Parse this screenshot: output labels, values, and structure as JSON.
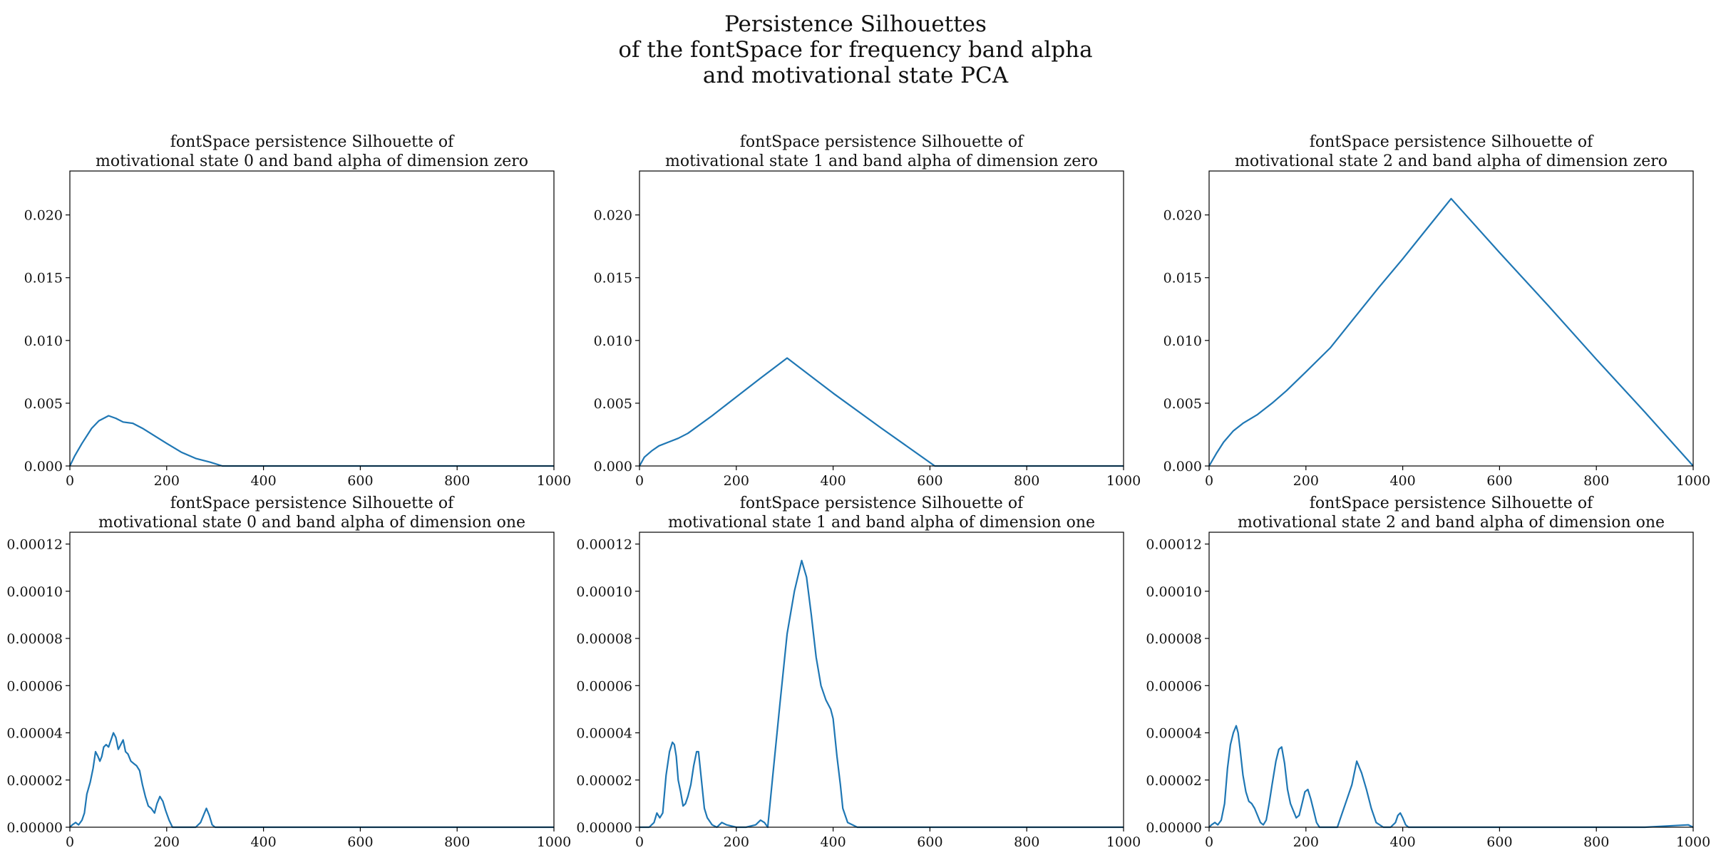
{
  "figure": {
    "suptitle": [
      "Persistence Silhouettes",
      "of the fontSpace for frequency band alpha",
      "and motivational state PCA"
    ],
    "line_color": "#1f77b4"
  },
  "chart_data": [
    {
      "type": "line",
      "title": [
        "fontSpace persistence Silhouette of",
        "motivational state 0 and band alpha of dimension zero"
      ],
      "xlim": [
        0,
        1000
      ],
      "ylim": [
        0,
        0.0235
      ],
      "xticks": [
        0,
        200,
        400,
        600,
        800,
        1000
      ],
      "xtick_labels": [
        "0",
        "200",
        "400",
        "600",
        "800",
        "1000"
      ],
      "yticks": [
        0,
        0.005,
        0.01,
        0.015,
        0.02
      ],
      "ytick_labels": [
        "0.000",
        "0.005",
        "0.010",
        "0.015",
        "0.020"
      ],
      "series": [
        {
          "x": [
            0,
            10,
            25,
            45,
            60,
            80,
            95,
            110,
            130,
            150,
            175,
            200,
            230,
            260,
            290,
            315,
            340,
            400,
            600,
            800,
            1000
          ],
          "y": [
            0,
            0.0008,
            0.0018,
            0.003,
            0.0036,
            0.004,
            0.0038,
            0.0035,
            0.0034,
            0.003,
            0.0024,
            0.0018,
            0.0011,
            0.0006,
            0.0003,
            0,
            0,
            0,
            0,
            0,
            0
          ]
        }
      ]
    },
    {
      "type": "line",
      "title": [
        "fontSpace persistence Silhouette of",
        "motivational state 1 and band alpha of dimension zero"
      ],
      "xlim": [
        0,
        1000
      ],
      "ylim": [
        0,
        0.0235
      ],
      "xticks": [
        0,
        200,
        400,
        600,
        800,
        1000
      ],
      "xtick_labels": [
        "0",
        "200",
        "400",
        "600",
        "800",
        "1000"
      ],
      "yticks": [
        0,
        0.005,
        0.01,
        0.015,
        0.02
      ],
      "ytick_labels": [
        "0.000",
        "0.005",
        "0.010",
        "0.015",
        "0.020"
      ],
      "series": [
        {
          "x": [
            0,
            10,
            25,
            40,
            60,
            80,
            100,
            150,
            200,
            250,
            305,
            400,
            500,
            610,
            700,
            800,
            900,
            1000
          ],
          "y": [
            0,
            0.0007,
            0.0012,
            0.0016,
            0.0019,
            0.0022,
            0.0026,
            0.004,
            0.0055,
            0.007,
            0.0086,
            0.0058,
            0.003,
            0,
            0,
            0,
            0,
            0
          ]
        }
      ]
    },
    {
      "type": "line",
      "title": [
        "fontSpace persistence Silhouette of",
        "motivational state 2 and band alpha of dimension zero"
      ],
      "xlim": [
        0,
        1000
      ],
      "ylim": [
        0,
        0.0235
      ],
      "xticks": [
        0,
        200,
        400,
        600,
        800,
        1000
      ],
      "xtick_labels": [
        "0",
        "200",
        "400",
        "600",
        "800",
        "1000"
      ],
      "yticks": [
        0,
        0.005,
        0.01,
        0.015,
        0.02
      ],
      "ytick_labels": [
        "0.000",
        "0.005",
        "0.010",
        "0.015",
        "0.020"
      ],
      "series": [
        {
          "x": [
            0,
            15,
            30,
            50,
            70,
            100,
            130,
            160,
            200,
            250,
            300,
            350,
            400,
            450,
            500,
            600,
            700,
            800,
            900,
            1000
          ],
          "y": [
            0,
            0.001,
            0.0019,
            0.0028,
            0.0034,
            0.0041,
            0.005,
            0.006,
            0.0075,
            0.0094,
            0.0118,
            0.0142,
            0.0165,
            0.0189,
            0.0213,
            0.017,
            0.0128,
            0.0085,
            0.0043,
            0
          ]
        }
      ]
    },
    {
      "type": "line",
      "title": [
        "fontSpace persistence Silhouette of",
        "motivational state 0 and band alpha of dimension one"
      ],
      "xlim": [
        0,
        1000
      ],
      "ylim": [
        0,
        0.000125
      ],
      "xticks": [
        0,
        200,
        400,
        600,
        800,
        1000
      ],
      "xtick_labels": [
        "0",
        "200",
        "400",
        "600",
        "800",
        "1000"
      ],
      "yticks": [
        0,
        2e-05,
        4e-05,
        6e-05,
        8e-05,
        0.0001,
        0.00012
      ],
      "ytick_labels": [
        "0.00000",
        "0.00002",
        "0.00004",
        "0.00006",
        "0.00008",
        "0.00010",
        "0.00012"
      ],
      "series": [
        {
          "x": [
            0,
            5,
            12,
            18,
            25,
            30,
            35,
            42,
            48,
            53,
            58,
            62,
            66,
            70,
            75,
            80,
            85,
            90,
            95,
            100,
            105,
            110,
            115,
            120,
            126,
            132,
            138,
            144,
            150,
            156,
            162,
            168,
            175,
            180,
            186,
            192,
            198,
            205,
            212,
            218,
            225,
            240,
            260,
            270,
            276,
            282,
            288,
            294,
            300,
            310,
            400,
            600,
            800,
            1000
          ],
          "y": [
            0,
            1e-06,
            2e-06,
            1e-06,
            3e-06,
            6e-06,
            1.4e-05,
            1.9e-05,
            2.5e-05,
            3.2e-05,
            3e-05,
            2.8e-05,
            3e-05,
            3.4e-05,
            3.5e-05,
            3.4e-05,
            3.7e-05,
            4e-05,
            3.8e-05,
            3.3e-05,
            3.5e-05,
            3.7e-05,
            3.2e-05,
            3.1e-05,
            2.8e-05,
            2.7e-05,
            2.6e-05,
            2.4e-05,
            1.8e-05,
            1.3e-05,
            9e-06,
            8e-06,
            6e-06,
            1e-05,
            1.3e-05,
            1.1e-05,
            7e-06,
            3e-06,
            0,
            0,
            0,
            0,
            0,
            2e-06,
            5e-06,
            8e-06,
            5e-06,
            1e-06,
            0,
            0,
            0,
            0,
            0,
            0
          ]
        }
      ]
    },
    {
      "type": "line",
      "title": [
        "fontSpace persistence Silhouette of",
        "motivational state 1 and band alpha of dimension one"
      ],
      "xlim": [
        0,
        1000
      ],
      "ylim": [
        0,
        0.000125
      ],
      "xticks": [
        0,
        200,
        400,
        600,
        800,
        1000
      ],
      "xtick_labels": [
        "0",
        "200",
        "400",
        "600",
        "800",
        "1000"
      ],
      "yticks": [
        0,
        2e-05,
        4e-05,
        6e-05,
        8e-05,
        0.0001,
        0.00012
      ],
      "ytick_labels": [
        "0.00000",
        "0.00002",
        "0.00004",
        "0.00006",
        "0.00008",
        "0.00010",
        "0.00012"
      ],
      "series": [
        {
          "x": [
            0,
            20,
            30,
            36,
            42,
            48,
            55,
            62,
            68,
            72,
            76,
            80,
            85,
            90,
            95,
            100,
            106,
            112,
            118,
            122,
            128,
            134,
            140,
            150,
            160,
            165,
            170,
            180,
            200,
            220,
            240,
            250,
            258,
            265,
            275,
            290,
            305,
            320,
            335,
            345,
            355,
            365,
            375,
            385,
            395,
            400,
            408,
            415,
            420,
            430,
            450,
            600,
            800,
            1000
          ],
          "y": [
            0,
            0,
            2e-06,
            6e-06,
            4e-06,
            6e-06,
            2.2e-05,
            3.2e-05,
            3.6e-05,
            3.5e-05,
            3e-05,
            2e-05,
            1.5e-05,
            9e-06,
            1e-05,
            1.3e-05,
            1.8e-05,
            2.6e-05,
            3.2e-05,
            3.2e-05,
            2e-05,
            8e-06,
            4e-06,
            1e-06,
            0,
            1e-06,
            2e-06,
            1e-06,
            0,
            0,
            1e-06,
            3e-06,
            2e-06,
            0,
            2.1e-05,
            5.2e-05,
            8.2e-05,
            0.0001,
            0.000113,
            0.000106,
            9e-05,
            7.2e-05,
            6e-05,
            5.4e-05,
            5e-05,
            4.6e-05,
            3e-05,
            1.8e-05,
            8e-06,
            2e-06,
            0,
            0,
            0,
            0
          ]
        }
      ]
    },
    {
      "type": "line",
      "title": [
        "fontSpace persistence Silhouette of",
        "motivational state 2 and band alpha of dimension one"
      ],
      "xlim": [
        0,
        1000
      ],
      "ylim": [
        0,
        0.000125
      ],
      "xticks": [
        0,
        200,
        400,
        600,
        800,
        1000
      ],
      "xtick_labels": [
        "0",
        "200",
        "400",
        "600",
        "800",
        "1000"
      ],
      "yticks": [
        0,
        2e-05,
        4e-05,
        6e-05,
        8e-05,
        0.0001,
        0.00012
      ],
      "ytick_labels": [
        "0.00000",
        "0.00002",
        "0.00004",
        "0.00006",
        "0.00008",
        "0.00010",
        "0.00012"
      ],
      "series": [
        {
          "x": [
            0,
            5,
            12,
            18,
            25,
            32,
            38,
            44,
            50,
            56,
            60,
            64,
            70,
            76,
            82,
            88,
            94,
            100,
            106,
            112,
            118,
            124,
            130,
            138,
            144,
            150,
            156,
            162,
            168,
            174,
            180,
            186,
            192,
            198,
            204,
            210,
            216,
            222,
            228,
            235,
            245,
            255,
            265,
            275,
            285,
            295,
            305,
            315,
            325,
            335,
            345,
            360,
            375,
            385,
            390,
            395,
            400,
            406,
            412,
            420,
            500,
            700,
            900,
            990,
            1000
          ],
          "y": [
            0,
            1e-06,
            2e-06,
            1e-06,
            3e-06,
            1e-05,
            2.5e-05,
            3.5e-05,
            4e-05,
            4.3e-05,
            4e-05,
            3.3e-05,
            2.2e-05,
            1.5e-05,
            1.1e-05,
            1e-05,
            8e-06,
            5e-06,
            2e-06,
            1e-06,
            3e-06,
            1e-05,
            1.8e-05,
            2.8e-05,
            3.3e-05,
            3.4e-05,
            2.7e-05,
            1.6e-05,
            1e-05,
            7e-06,
            4e-06,
            5e-06,
            1e-05,
            1.5e-05,
            1.6e-05,
            1.2e-05,
            7e-06,
            2e-06,
            0,
            0,
            0,
            0,
            0,
            6e-06,
            1.2e-05,
            1.8e-05,
            2.8e-05,
            2.3e-05,
            1.6e-05,
            8e-06,
            2e-06,
            0,
            0,
            2e-06,
            5e-06,
            6e-06,
            4e-06,
            1e-06,
            0,
            0,
            0,
            0,
            0,
            1e-06,
            0
          ]
        }
      ]
    }
  ]
}
